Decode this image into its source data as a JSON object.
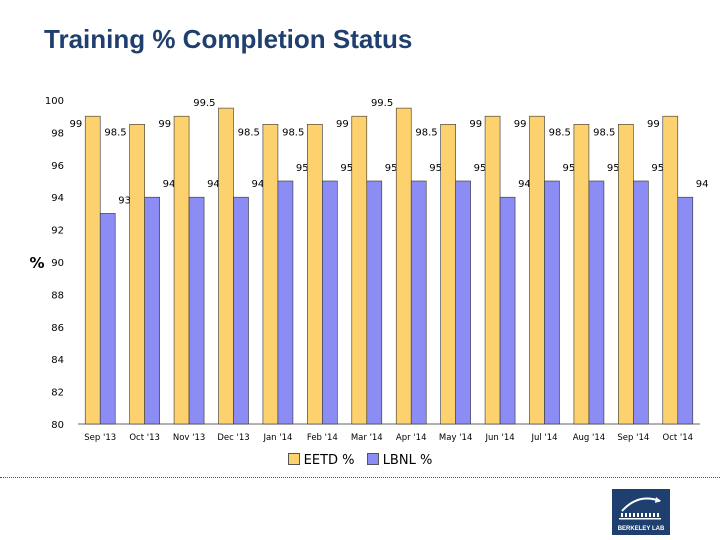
{
  "page": {
    "title": "Training % Completion Status",
    "logo_text": "BERKELEY LAB"
  },
  "colors": {
    "eetd": "#fdd26e",
    "lbnl": "#8c8cf5",
    "bar_stroke": "#333333",
    "title": "#1f3f6e"
  },
  "chart_data": {
    "type": "bar",
    "title": "Training % Completion Status",
    "xlabel": "",
    "ylabel": "%",
    "ylim": [
      80,
      100
    ],
    "yticks": [
      80,
      82,
      84,
      86,
      88,
      90,
      92,
      94,
      96,
      98,
      100
    ],
    "grid": false,
    "legend_position": "bottom",
    "categories": [
      "Sep '13",
      "Oct '13",
      "Nov '13",
      "Dec '13",
      "Jan '14",
      "Feb '14",
      "Mar '14",
      "Apr '14",
      "May '14",
      "Jun '14",
      "Jul '14",
      "Aug '14",
      "Sep '14",
      "Oct '14"
    ],
    "series": [
      {
        "name": "EETD %",
        "values": [
          99,
          98.5,
          99,
          99.5,
          98.5,
          98.5,
          99,
          99.5,
          98.5,
          99,
          99,
          98.5,
          98.5,
          99
        ]
      },
      {
        "name": "LBNL %",
        "values": [
          93,
          94,
          94,
          94,
          95,
          95,
          95,
          95,
          95,
          94,
          95,
          95,
          95,
          94
        ]
      }
    ]
  }
}
